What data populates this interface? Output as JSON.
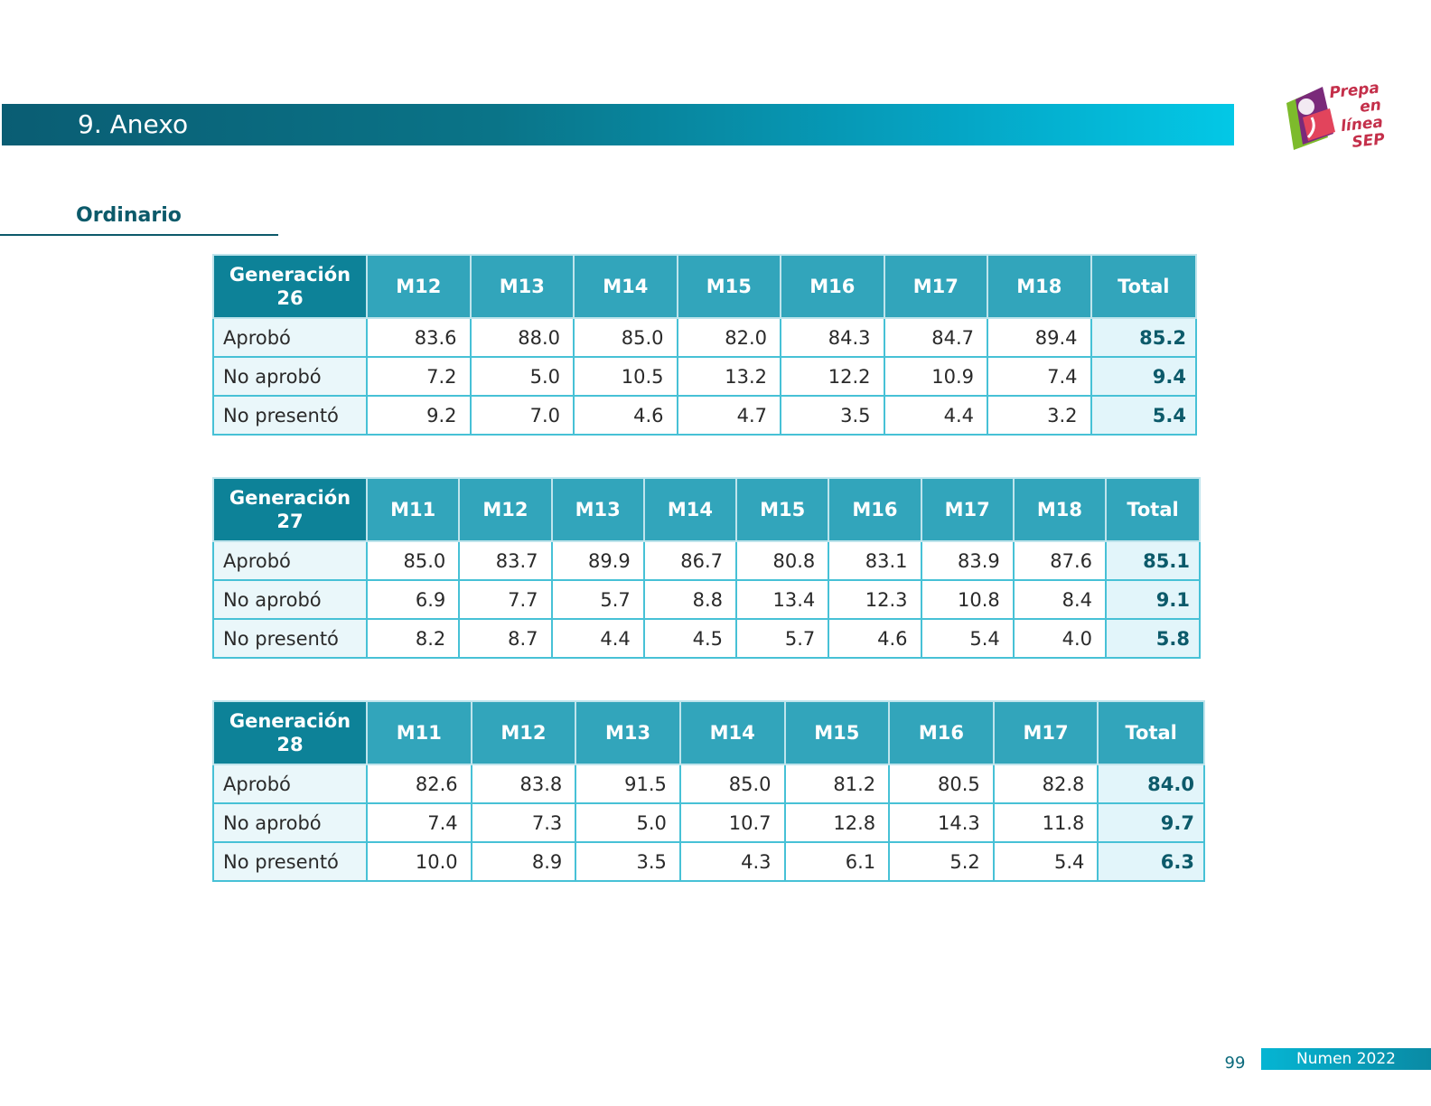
{
  "header": {
    "title": "9. Anexo"
  },
  "logo": {
    "text_line1": "Prepa en",
    "text_line2": "línea",
    "text_line3": "SEP"
  },
  "section": {
    "title": "Ordinario"
  },
  "tables": [
    {
      "gen_label": "Generación",
      "gen_number": "26",
      "columns": [
        "M12",
        "M13",
        "M14",
        "M15",
        "M16",
        "M17",
        "M18"
      ],
      "total_label": "Total",
      "rows": [
        {
          "label": "Aprobó",
          "values": [
            "83.6",
            "88.0",
            "85.0",
            "82.0",
            "84.3",
            "84.7",
            "89.4"
          ],
          "total": "85.2"
        },
        {
          "label": "No aprobó",
          "values": [
            "7.2",
            "5.0",
            "10.5",
            "13.2",
            "12.2",
            "10.9",
            "7.4"
          ],
          "total": "9.4"
        },
        {
          "label": "No presentó",
          "values": [
            "9.2",
            "7.0",
            "4.6",
            "4.7",
            "3.5",
            "4.4",
            "3.2"
          ],
          "total": "5.4"
        }
      ]
    },
    {
      "gen_label": "Generación",
      "gen_number": "27",
      "columns": [
        "M11",
        "M12",
        "M13",
        "M14",
        "M15",
        "M16",
        "M17",
        "M18"
      ],
      "total_label": "Total",
      "rows": [
        {
          "label": "Aprobó",
          "values": [
            "85.0",
            "83.7",
            "89.9",
            "86.7",
            "80.8",
            "83.1",
            "83.9",
            "87.6"
          ],
          "total": "85.1"
        },
        {
          "label": "No aprobó",
          "values": [
            "6.9",
            "7.7",
            "5.7",
            "8.8",
            "13.4",
            "12.3",
            "10.8",
            "8.4"
          ],
          "total": "9.1"
        },
        {
          "label": "No presentó",
          "values": [
            "8.2",
            "8.7",
            "4.4",
            "4.5",
            "5.7",
            "4.6",
            "5.4",
            "4.0"
          ],
          "total": "5.8"
        }
      ]
    },
    {
      "gen_label": "Generación",
      "gen_number": "28",
      "columns": [
        "M11",
        "M12",
        "M13",
        "M14",
        "M15",
        "M16",
        "M17"
      ],
      "total_label": "Total",
      "rows": [
        {
          "label": "Aprobó",
          "values": [
            "82.6",
            "83.8",
            "91.5",
            "85.0",
            "81.2",
            "80.5",
            "82.8"
          ],
          "total": "84.0"
        },
        {
          "label": "No aprobó",
          "values": [
            "7.4",
            "7.3",
            "5.0",
            "10.7",
            "12.8",
            "14.3",
            "11.8"
          ],
          "total": "9.7"
        },
        {
          "label": "No presentó",
          "values": [
            "10.0",
            "8.9",
            "3.5",
            "4.3",
            "6.1",
            "5.2",
            "5.4"
          ],
          "total": "6.3"
        }
      ]
    }
  ],
  "footer": {
    "page_number": "99",
    "publication": "Numen 2022"
  }
}
